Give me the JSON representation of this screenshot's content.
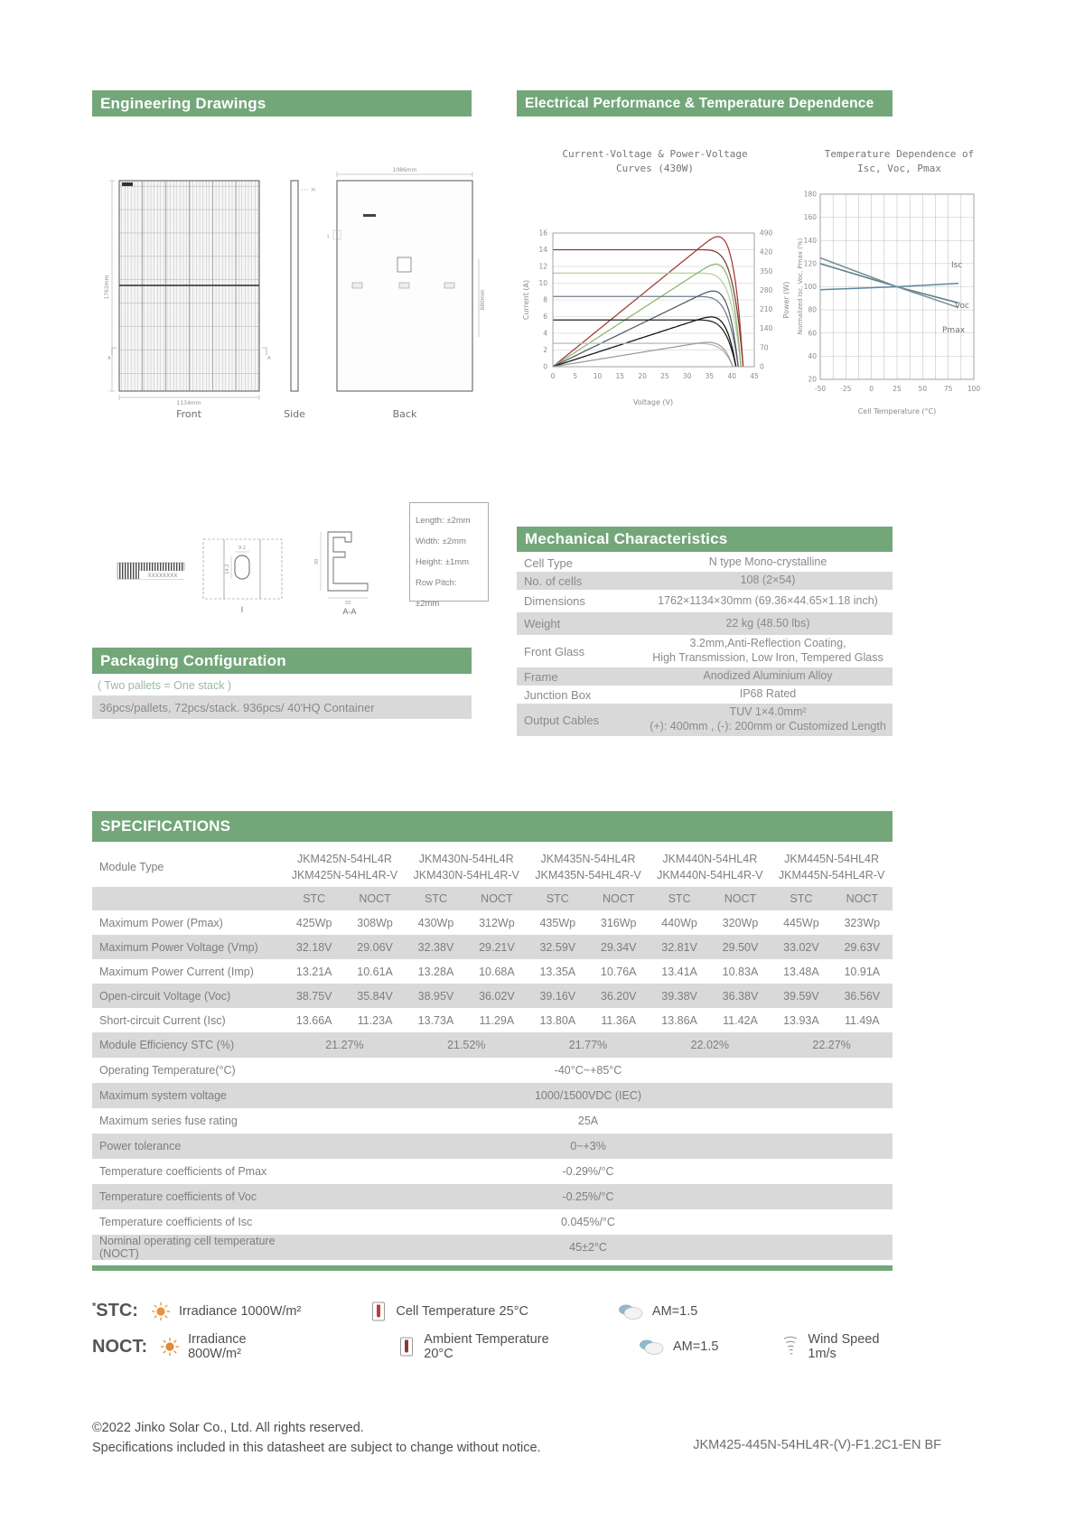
{
  "colors": {
    "green": "#73a77a",
    "stripe": "#d9d9d9",
    "text_gray": "#8a8a8a"
  },
  "sections": {
    "engineering": {
      "title": "Engineering Drawings",
      "front_caption": "Front",
      "side_caption": "Side",
      "back_caption": "Back",
      "dim_height": "1762mm",
      "dim_width": "1134mm",
      "back_dim_width": "1086mm",
      "back_dim_height": "880mm",
      "marker_a": "A",
      "marker_h": "H",
      "marker_i": "I",
      "barcode_text": "XXXXXXXX",
      "detail_hole": {
        "caption": "I",
        "dim_w": "9.2",
        "dim_h": "14.2"
      },
      "detail_profile": {
        "caption": "A-A",
        "dim_h": "30",
        "dim_w": "33"
      },
      "tolerances": [
        "Length: ±2mm",
        "Width: ±2mm",
        "Height: ±1mm",
        "Row Pitch: ±2mm"
      ]
    },
    "electrical": {
      "title": "Electrical Performance & Temperature Dependence"
    },
    "packaging": {
      "title": "Packaging Configuration",
      "note": "( Two pallets = One stack )",
      "line": "36pcs/pallets, 72pcs/stack. 936pcs/ 40'HQ Container"
    },
    "mechanical": {
      "title": "Mechanical Characteristics",
      "rows": [
        {
          "label": "Cell  Type",
          "value": "N type Mono-crystalline"
        },
        {
          "label": "No. of cells",
          "value": "108 (2×54)"
        },
        {
          "label": "Dimensions",
          "value": "1762×1134×30mm (69.36×44.65×1.18 inch)"
        },
        {
          "label": "Weight",
          "value": "22 kg (48.50 lbs)"
        },
        {
          "label": "Front Glass",
          "value": "3.2mm,Anti-Reflection Coating,\nHigh Transmission, Low Iron, Tempered Glass"
        },
        {
          "label": "Frame",
          "value": "Anodized Aluminium Alloy"
        },
        {
          "label": "Junction Box",
          "value": "IP68 Rated"
        },
        {
          "label": "Output Cables",
          "value": "TUV 1×4.0mm²\n(+): 400mm , (-): 200mm or Customized Length"
        }
      ]
    },
    "specifications": {
      "title": "SPECIFICATIONS",
      "module_type_label": "Module Type",
      "modules": [
        {
          "line1": "JKM425N-54HL4R",
          "line2": "JKM425N-54HL4R-V"
        },
        {
          "line1": "JKM430N-54HL4R",
          "line2": "JKM430N-54HL4R-V"
        },
        {
          "line1": "JKM435N-54HL4R",
          "line2": "JKM435N-54HL4R-V"
        },
        {
          "line1": "JKM440N-54HL4R",
          "line2": "JKM440N-54HL4R-V"
        },
        {
          "line1": "JKM445N-54HL4R",
          "line2": "JKM445N-54HL4R-V"
        }
      ],
      "col_stc": "STC",
      "col_noct": "NOCT",
      "rows": [
        {
          "label": "Maximum Power (Pmax)",
          "values": [
            "425Wp",
            "308Wp",
            "430Wp",
            "312Wp",
            "435Wp",
            "316Wp",
            "440Wp",
            "320Wp",
            "445Wp",
            "323Wp"
          ]
        },
        {
          "label": "Maximum Power Voltage (Vmp)",
          "values": [
            "32.18V",
            "29.06V",
            "32.38V",
            "29.21V",
            "32.59V",
            "29.34V",
            "32.81V",
            "29.50V",
            "33.02V",
            "29.63V"
          ]
        },
        {
          "label": "Maximum Power Current (Imp)",
          "values": [
            "13.21A",
            "10.61A",
            "13.28A",
            "10.68A",
            "13.35A",
            "10.76A",
            "13.41A",
            "10.83A",
            "13.48A",
            "10.91A"
          ]
        },
        {
          "label": "Open-circuit Voltage (Voc)",
          "values": [
            "38.75V",
            "35.84V",
            "38.95V",
            "36.02V",
            "39.16V",
            "36.20V",
            "39.38V",
            "36.38V",
            "39.59V",
            "36.56V"
          ]
        },
        {
          "label": "Short-circuit Current (Isc)",
          "values": [
            "13.66A",
            "11.23A",
            "13.73A",
            "11.29A",
            "13.80A",
            "11.36A",
            "13.86A",
            "11.42A",
            "13.93A",
            "11.49A"
          ]
        }
      ],
      "efficiency": {
        "label": "Module Efficiency STC (%)",
        "values": [
          "21.27%",
          "21.52%",
          "21.77%",
          "22.02%",
          "22.27%"
        ]
      },
      "merged": [
        {
          "label": "Operating Temperature(°C)",
          "value": "-40°C~+85°C"
        },
        {
          "label": "Maximum system voltage",
          "value": "1000/1500VDC (IEC)"
        },
        {
          "label": "Maximum series fuse rating",
          "value": "25A"
        },
        {
          "label": "Power tolerance",
          "value": "0~+3%"
        },
        {
          "label": "Temperature coefficients of Pmax",
          "value": "-0.29%/°C"
        },
        {
          "label": "Temperature coefficients of Voc",
          "value": "-0.25%/°C"
        },
        {
          "label": "Temperature coefficients of Isc",
          "value": "0.045%/°C"
        },
        {
          "label": "Nominal operating cell temperature  (NOCT)",
          "value": "45±2°C"
        }
      ]
    },
    "legend": {
      "stc_prefix": "*",
      "stc_label": "STC:",
      "noct_label": "NOCT:",
      "stc_items": [
        {
          "icon": "sun",
          "text": "Irradiance 1000W/m²"
        },
        {
          "icon": "thermometer",
          "text": "Cell Temperature 25°C"
        },
        {
          "icon": "cloud",
          "text": "AM=1.5"
        }
      ],
      "noct_items": [
        {
          "icon": "sun",
          "text": "Irradiance 800W/m²"
        },
        {
          "icon": "thermometer",
          "text": "Ambient Temperature 20°C"
        },
        {
          "icon": "cloud",
          "text": "AM=1.5"
        },
        {
          "icon": "wind",
          "text": "Wind Speed 1m/s"
        }
      ]
    },
    "footer": {
      "line1": "©2022 Jinko Solar Co., Ltd. All rights reserved.",
      "line2": "Specifications included in this datasheet are subject to change without notice.",
      "doc_code": "JKM425-445N-54HL4R-(V)-F1.2C1-EN BF"
    }
  },
  "chart_data": [
    {
      "type": "line",
      "title": "Current-Voltage & Power-Voltage Curves (430W)",
      "title_line1": "Current-Voltage & Power-Voltage",
      "title_line2": "Curves (430W)",
      "xlabel": "Voltage (V)",
      "ylabel_left": "Current (A)",
      "ylabel_right": "Power (W)",
      "xlim": [
        0,
        45
      ],
      "xticks": [
        0,
        5,
        10,
        15,
        20,
        25,
        30,
        35,
        40,
        45
      ],
      "ylim_left": [
        0,
        16
      ],
      "yticks_left": [
        0,
        2,
        4,
        6,
        8,
        10,
        12,
        14,
        16
      ],
      "ylim_right": [
        0,
        490
      ],
      "yticks_right": [
        0,
        70,
        140,
        210,
        280,
        350,
        420,
        490
      ],
      "grid": "horizontal",
      "legend_position": "none",
      "series": [
        {
          "name": "I-V / P-V pair, Isc 14.0A",
          "isc": 14.0,
          "voc": 42.5,
          "color_iv": "#7d3b3b",
          "color_pv": "#a03a32"
        },
        {
          "name": "I-V / P-V pair, Isc 11.2A",
          "isc": 11.2,
          "voc": 42.0,
          "color_iv": "#b8cf9e",
          "color_pv": "#8cb573"
        },
        {
          "name": "I-V / P-V pair, Isc 8.4A",
          "isc": 8.4,
          "voc": 41.4,
          "color_iv": "#717d89",
          "color_pv": "#4f5a64"
        },
        {
          "name": "I-V / P-V pair, Isc 5.6A",
          "isc": 5.6,
          "voc": 40.9,
          "color_iv": "#232323",
          "color_pv": "#111111"
        },
        {
          "name": "I-V / P-V pair, Isc 2.8A",
          "isc": 2.8,
          "voc": 40.2,
          "color_iv": "#b9b9b9",
          "color_pv": "#9b9b9b"
        }
      ]
    },
    {
      "type": "line",
      "title": "Temperature Dependence of Isc, Voc, Pmax",
      "title_line1": "Temperature Dependence of",
      "title_line2": "Isc, Voc, Pmax",
      "xlabel": "Cell Temperature (°C)",
      "ylabel": "Normalized Isc, Voc, Pmax (%)",
      "xlim": [
        -50,
        100
      ],
      "xticks": [
        -50,
        -25,
        0,
        25,
        50,
        75,
        100
      ],
      "ylim": [
        20,
        180
      ],
      "yticks": [
        20,
        40,
        60,
        80,
        100,
        120,
        140,
        160,
        180
      ],
      "grid": "full",
      "legend_position": "inline-right",
      "series": [
        {
          "name": "Isc",
          "color": "#5b87a0",
          "points": [
            [
              -50,
              97.5
            ],
            [
              25,
              100
            ],
            [
              85,
              103
            ]
          ]
        },
        {
          "name": "Voc",
          "color": "#5e7d84",
          "points": [
            [
              -50,
              120
            ],
            [
              25,
              100
            ],
            [
              85,
              86
            ]
          ]
        },
        {
          "name": "Pmax",
          "color": "#78909a",
          "points": [
            [
              -50,
              125
            ],
            [
              25,
              100
            ],
            [
              85,
              82
            ]
          ]
        }
      ]
    }
  ]
}
